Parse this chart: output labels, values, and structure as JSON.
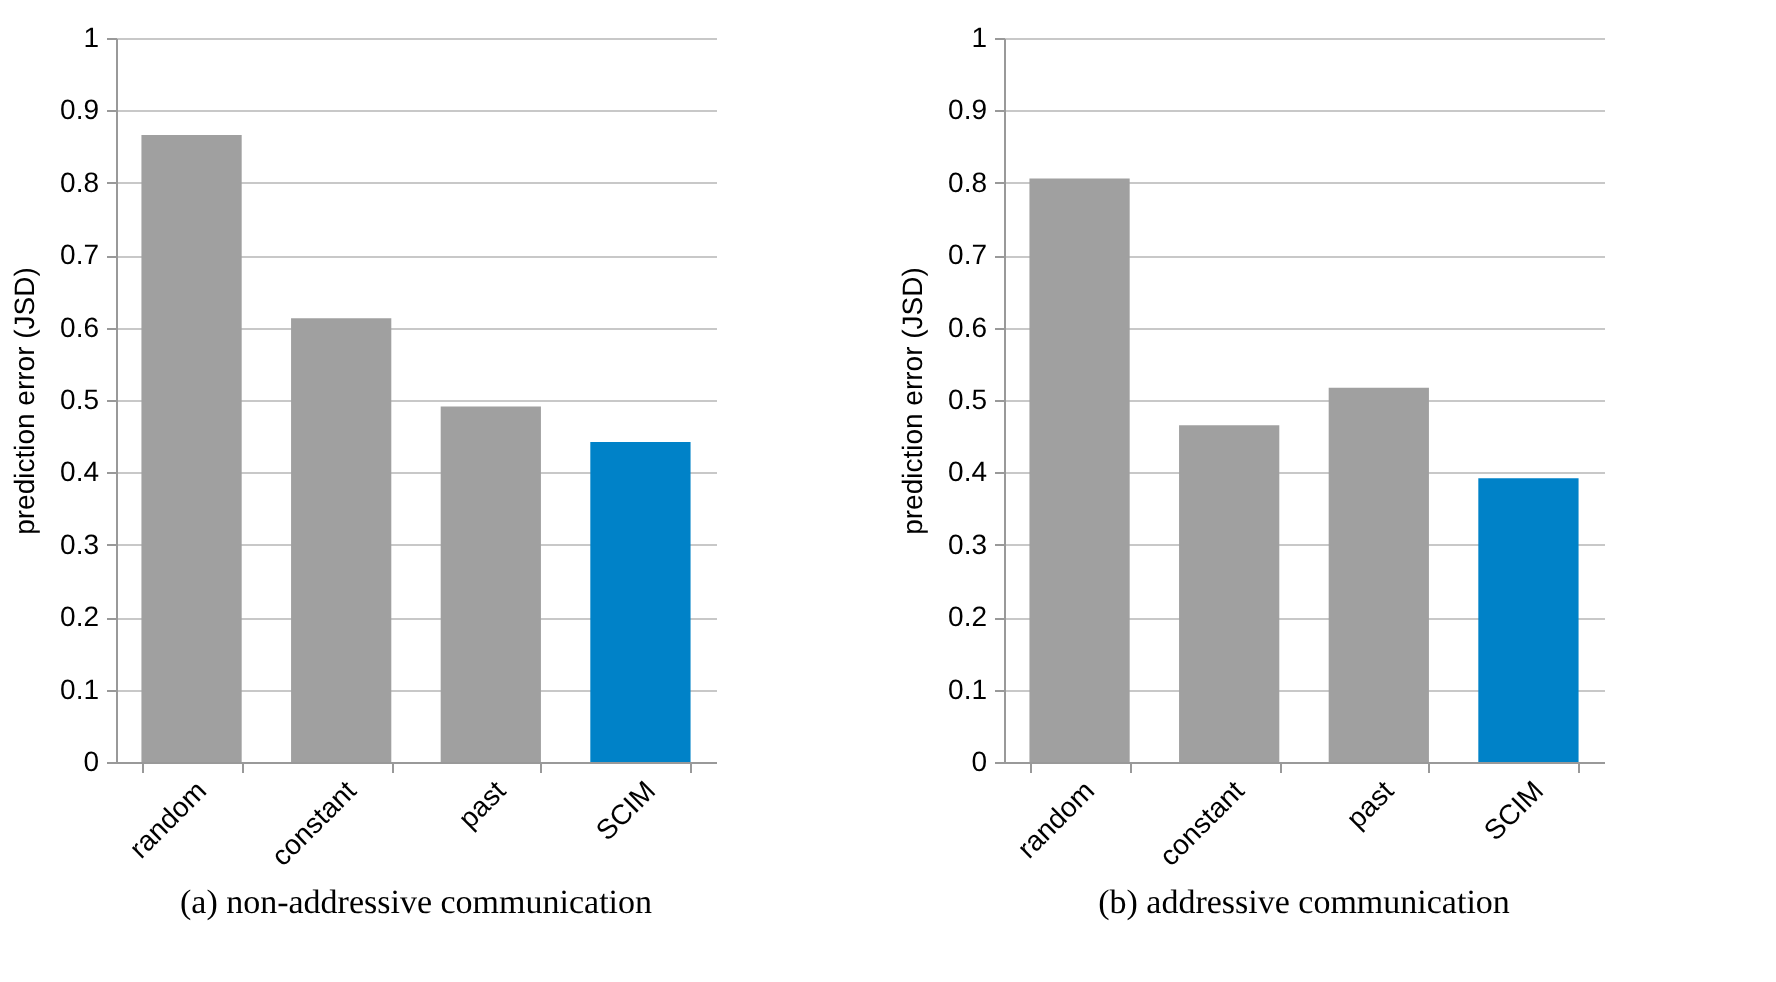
{
  "chart_data": [
    {
      "type": "bar",
      "title": "(a) non-addressive communication",
      "ylabel": "prediction error (JSD)",
      "categories": [
        "random",
        "constant",
        "past",
        "SCIM"
      ],
      "values": [
        0.866,
        0.613,
        0.491,
        0.442
      ],
      "colors": [
        "#a0a0a0",
        "#a0a0a0",
        "#a0a0a0",
        "#0082c8"
      ],
      "ylim": [
        0,
        1
      ],
      "yticks": [
        0,
        0.1,
        0.2,
        0.3,
        0.4,
        0.5,
        0.6,
        0.7,
        0.8,
        0.9,
        1
      ],
      "grid": "y"
    },
    {
      "type": "bar",
      "title": "(b) addressive communication",
      "ylabel": "prediction error (JSD)",
      "categories": [
        "random",
        "constant",
        "past",
        "SCIM"
      ],
      "values": [
        0.806,
        0.465,
        0.517,
        0.392
      ],
      "colors": [
        "#a0a0a0",
        "#a0a0a0",
        "#a0a0a0",
        "#0082c8"
      ],
      "ylim": [
        0,
        1
      ],
      "yticks": [
        0,
        0.1,
        0.2,
        0.3,
        0.4,
        0.5,
        0.6,
        0.7,
        0.8,
        0.9,
        1
      ],
      "grid": "y"
    }
  ]
}
